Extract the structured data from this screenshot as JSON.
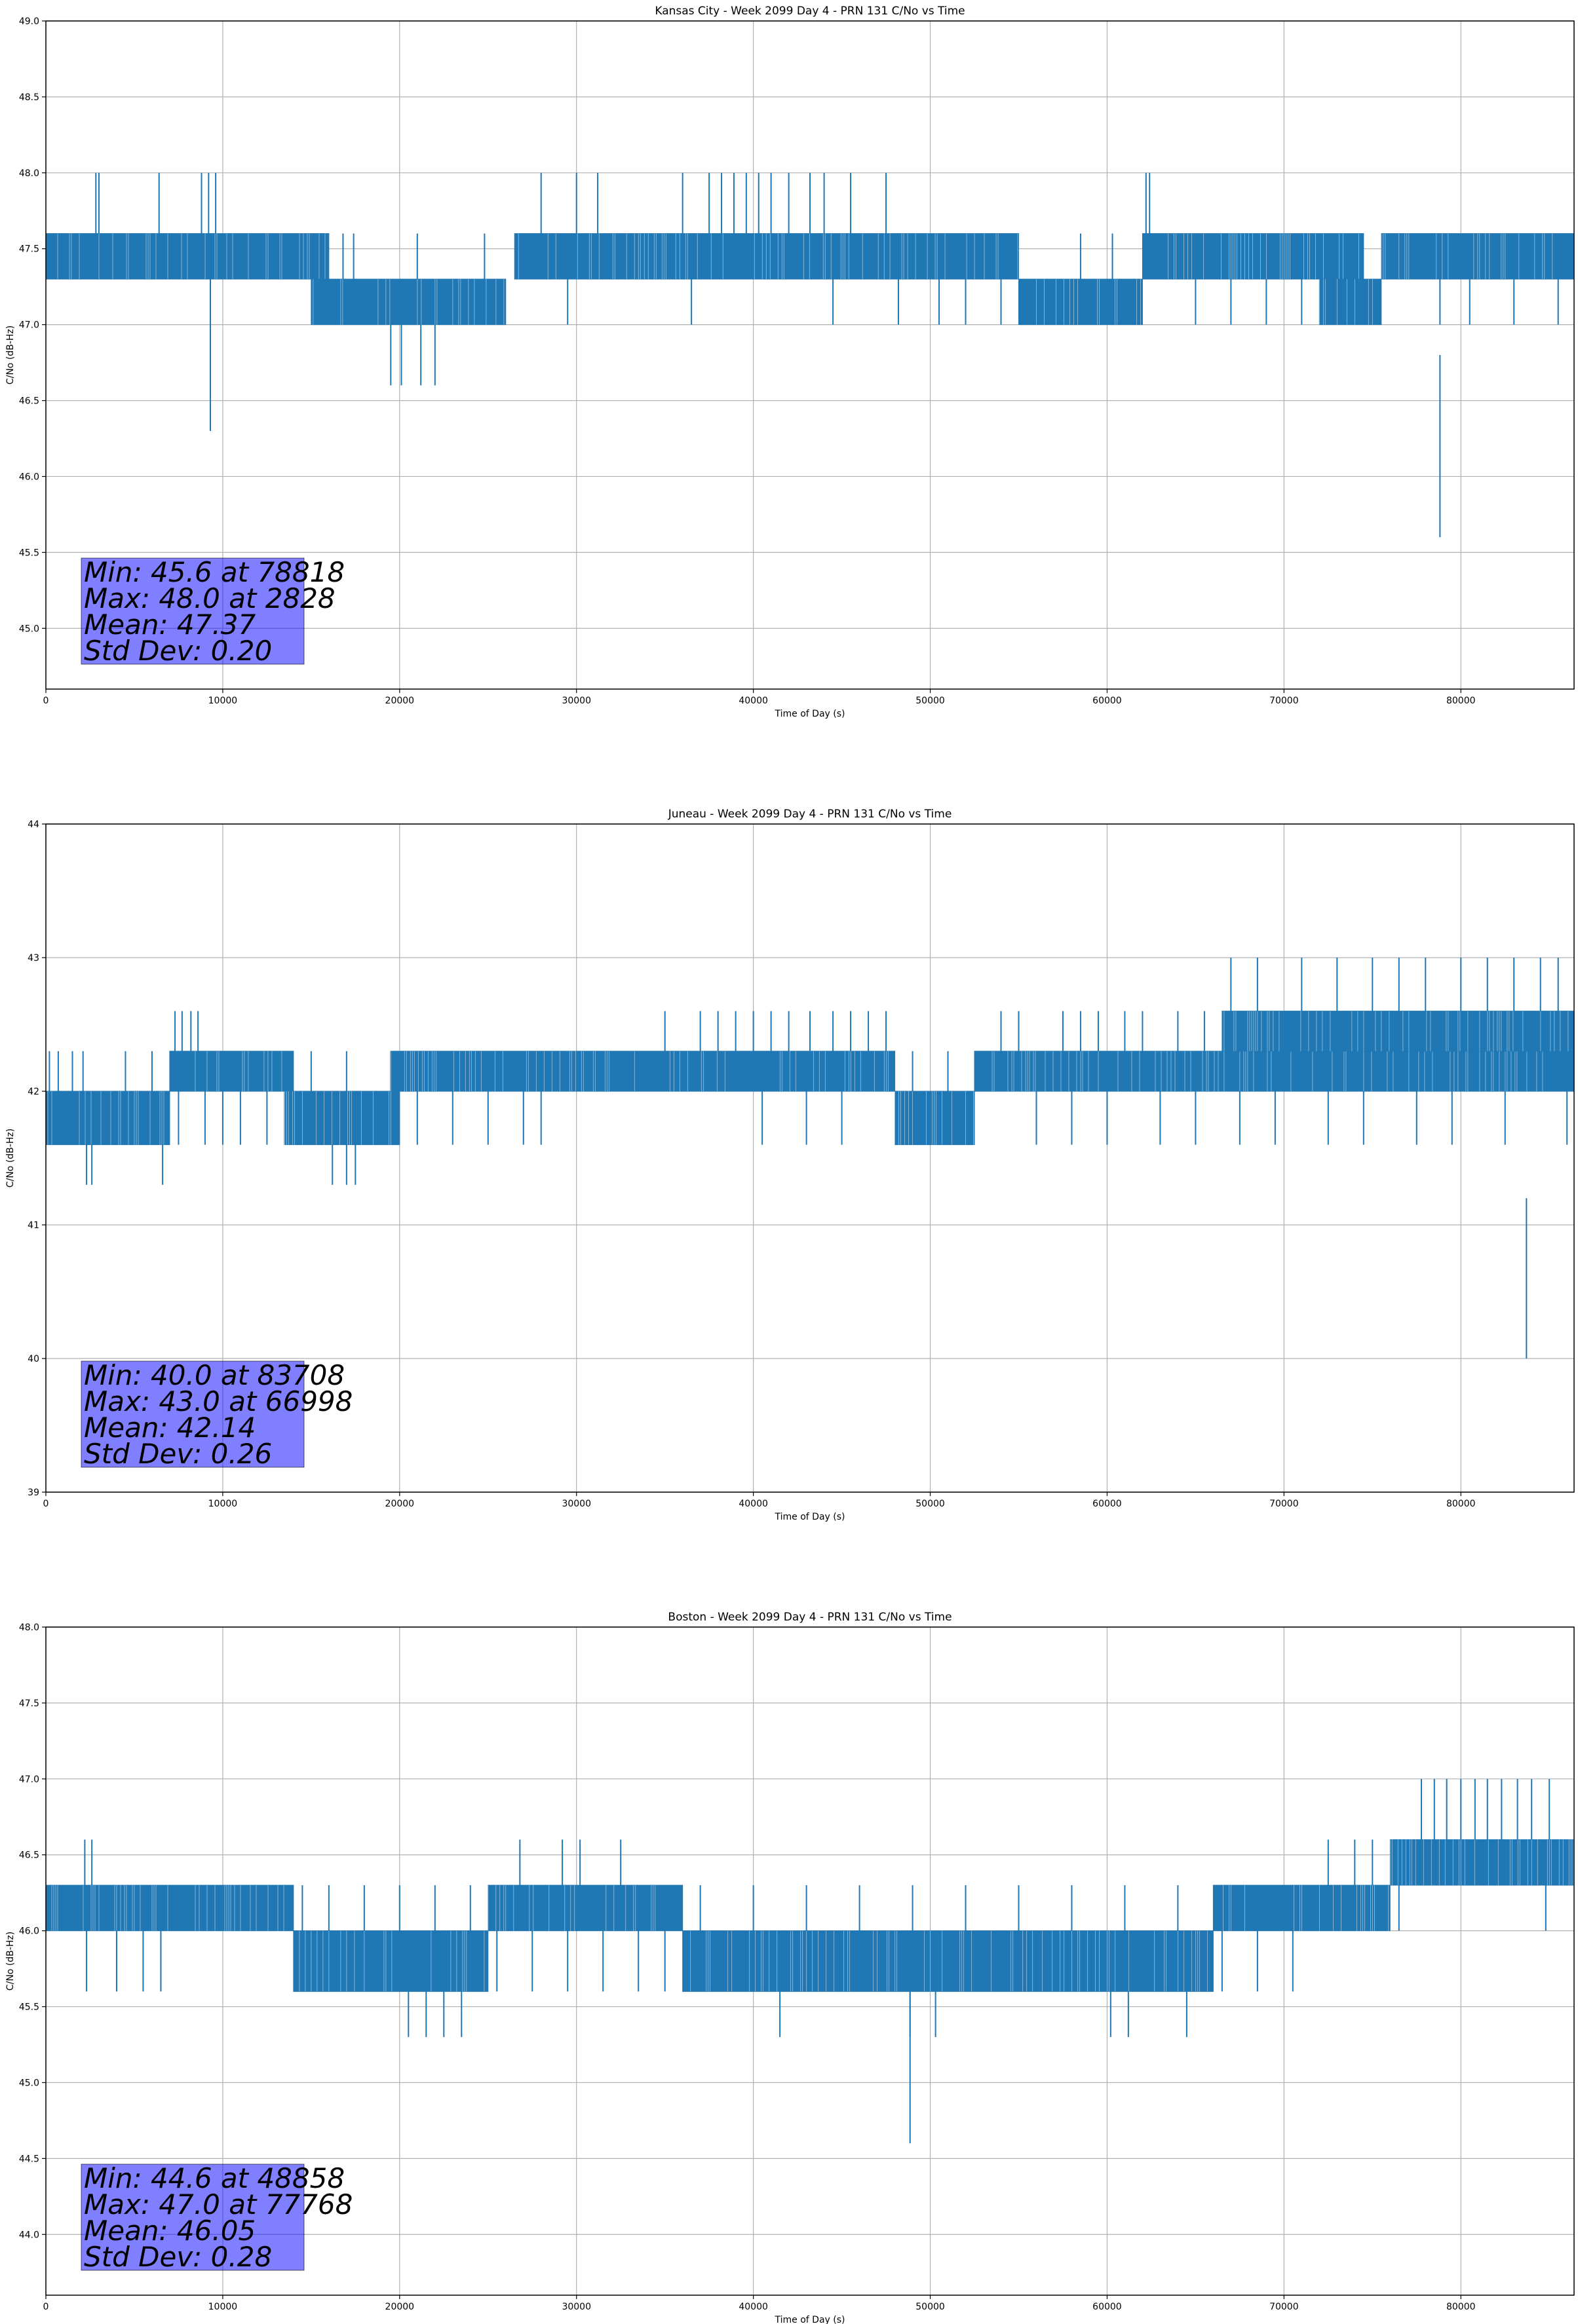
{
  "chart_data": [
    {
      "type": "line",
      "title": "Kansas City - Week 2099 Day 4 - PRN 131 C/No vs Time",
      "xlabel": "Time of Day (s)",
      "ylabel": "C/No (dB-Hz)",
      "xlim": [
        0,
        86400
      ],
      "ylim": [
        44.6,
        49.0
      ],
      "xticks": [
        0,
        10000,
        20000,
        30000,
        40000,
        50000,
        60000,
        70000,
        80000
      ],
      "yticks": [
        45.0,
        45.5,
        46.0,
        46.5,
        47.0,
        47.5,
        48.0,
        48.5,
        49.0
      ],
      "ytick_labels": [
        "45.0",
        "45.5",
        "46.0",
        "46.5",
        "47.0",
        "47.5",
        "48.0",
        "48.5",
        "49.0"
      ],
      "grid": true,
      "color": "#1f77b4",
      "stats": [
        "Min: 45.6 at 78818",
        "Max: 48.0 at 2828",
        "Mean: 47.37",
        "Std Dev: 0.20"
      ],
      "segments": [
        {
          "x": [
            0,
            16000
          ],
          "bands": [
            [
              47.3,
              47.6
            ]
          ],
          "spikes_up": [
            2828,
            3000,
            6400,
            8800,
            9200,
            9600
          ],
          "spike_up_to": 48.0,
          "spikes_down": [
            9300
          ],
          "spike_down_to": 46.3
        },
        {
          "x": [
            15000,
            26000
          ],
          "bands": [
            [
              47.0,
              47.3
            ]
          ],
          "spikes_up": [
            16800,
            17400,
            21000,
            24800
          ],
          "spike_up_to": 47.6,
          "spikes_down": [
            19500,
            20100,
            21200,
            22000
          ],
          "spike_down_to": 46.6
        },
        {
          "x": [
            26500,
            47500
          ],
          "bands": [
            [
              47.3,
              47.6
            ]
          ],
          "spikes_up": [
            28000,
            30000,
            31200,
            36000,
            37500,
            38200,
            38900,
            39600,
            40300,
            41000,
            42000,
            43200,
            44000,
            45500,
            47500
          ],
          "spike_up_to": 48.0,
          "spikes_down": [
            29500,
            36500,
            44500
          ],
          "spike_down_to": 47.0
        },
        {
          "x": [
            47500,
            55000
          ],
          "bands": [
            [
              47.3,
              47.6
            ]
          ],
          "spikes_up": [],
          "spike_up_to": 47.6,
          "spikes_down": [
            48200,
            50500,
            52000,
            54000
          ],
          "spike_down_to": 47.0
        },
        {
          "x": [
            55000,
            62000
          ],
          "bands": [
            [
              47.0,
              47.3
            ]
          ],
          "spikes_up": [
            58500,
            60300
          ],
          "spike_up_to": 47.6,
          "spikes_down": [],
          "spike_down_to": 47.0
        },
        {
          "x": [
            62000,
            74500
          ],
          "bands": [
            [
              47.3,
              47.6
            ]
          ],
          "spikes_up": [
            62200,
            62400
          ],
          "spike_up_to": 48.0,
          "spikes_down": [
            65000,
            67000,
            69000,
            71000
          ],
          "spike_down_to": 47.0
        },
        {
          "x": [
            72000,
            75500
          ],
          "bands": [
            [
              47.0,
              47.3
            ]
          ],
          "spikes_up": [],
          "spike_up_to": 47.6,
          "spikes_down": [],
          "spike_down_to": 47.0
        },
        {
          "x": [
            75500,
            86400
          ],
          "bands": [
            [
              47.3,
              47.6
            ]
          ],
          "spikes_up": [],
          "spike_up_to": 47.6,
          "spikes_down": [
            78818,
            80500,
            83000,
            85500
          ],
          "spike_down_to": 47.0
        }
      ],
      "min_point": [
        78818,
        45.6
      ]
    },
    {
      "type": "line",
      "title": "Juneau - Week 2099 Day 4 - PRN 131 C/No vs Time",
      "xlabel": "Time of Day (s)",
      "ylabel": "C/No (dB-Hz)",
      "xlim": [
        0,
        86400
      ],
      "ylim": [
        39,
        44
      ],
      "xticks": [
        0,
        10000,
        20000,
        30000,
        40000,
        50000,
        60000,
        70000,
        80000
      ],
      "yticks": [
        39,
        40,
        41,
        42,
        43,
        44
      ],
      "ytick_labels": [
        "39",
        "40",
        "41",
        "42",
        "43",
        "44"
      ],
      "grid": true,
      "color": "#1f77b4",
      "stats": [
        "Min: 40.0 at 83708",
        "Max: 43.0 at 66998",
        "Mean: 42.14",
        "Std Dev: 0.26"
      ],
      "segments": [
        {
          "x": [
            0,
            7000
          ],
          "bands": [
            [
              41.6,
              42.0
            ]
          ],
          "spikes_up": [
            200,
            700,
            1500,
            2100,
            4500,
            6000
          ],
          "spike_up_to": 42.3,
          "spikes_down": [
            2300,
            2600,
            6600
          ],
          "spike_down_to": 41.3
        },
        {
          "x": [
            7000,
            14000
          ],
          "bands": [
            [
              42.0,
              42.3
            ]
          ],
          "spikes_up": [
            7300,
            7700,
            8200,
            8600
          ],
          "spike_up_to": 42.6,
          "spikes_down": [
            7500,
            9000,
            10000,
            11000,
            12500,
            13500
          ],
          "spike_down_to": 41.6
        },
        {
          "x": [
            13500,
            20000
          ],
          "bands": [
            [
              41.6,
              42.0
            ]
          ],
          "spikes_up": [
            15000,
            17000,
            19500
          ],
          "spike_up_to": 42.3,
          "spikes_down": [
            16200,
            17000,
            17500
          ],
          "spike_down_to": 41.3
        },
        {
          "x": [
            19500,
            48000
          ],
          "bands": [
            [
              42.0,
              42.3
            ]
          ],
          "spikes_up": [
            35000,
            37000,
            38000,
            39000,
            40000,
            41000,
            42000,
            43200,
            44500,
            45500,
            46500,
            47500
          ],
          "spike_up_to": 42.6,
          "spikes_down": [
            21000,
            23000,
            25000,
            27000,
            28000,
            40500,
            43000,
            45000
          ],
          "spike_down_to": 41.6
        },
        {
          "x": [
            48000,
            52500
          ],
          "bands": [
            [
              41.6,
              42.0
            ]
          ],
          "spikes_up": [
            49000,
            51000
          ],
          "spike_up_to": 42.3,
          "spikes_down": [],
          "spike_down_to": 41.6
        },
        {
          "x": [
            52500,
            66500
          ],
          "bands": [
            [
              42.0,
              42.3
            ]
          ],
          "spikes_up": [
            54000,
            55000,
            57500,
            58500,
            59500,
            61000,
            62000,
            64000,
            65500
          ],
          "spike_up_to": 42.6,
          "spikes_down": [
            56000,
            58000,
            60000,
            63000,
            65000
          ],
          "spike_down_to": 41.6
        },
        {
          "x": [
            66500,
            86400
          ],
          "bands": [
            [
              42.0,
              42.3
            ],
            [
              42.3,
              42.6
            ]
          ],
          "spikes_up": [
            66998,
            68500,
            71000,
            73000,
            75000,
            76500,
            78000,
            80000,
            81500,
            83000,
            84500,
            85500
          ],
          "spike_up_to": 43.0,
          "spikes_down": [
            67500,
            69500,
            72500,
            74500,
            77500,
            79500,
            82500,
            86000
          ],
          "spike_down_to": 41.6
        }
      ],
      "min_point": [
        83708,
        40.0
      ]
    },
    {
      "type": "line",
      "title": "Boston - Week 2099 Day 4 - PRN 131 C/No vs Time",
      "xlabel": "Time of Day (s)",
      "ylabel": "C/No (dB-Hz)",
      "xlim": [
        0,
        86400
      ],
      "ylim": [
        43.6,
        48.0
      ],
      "xticks": [
        0,
        10000,
        20000,
        30000,
        40000,
        50000,
        60000,
        70000,
        80000
      ],
      "yticks": [
        44.0,
        44.5,
        45.0,
        45.5,
        46.0,
        46.5,
        47.0,
        47.5,
        48.0
      ],
      "ytick_labels": [
        "44.0",
        "44.5",
        "45.0",
        "45.5",
        "46.0",
        "46.5",
        "47.0",
        "47.5",
        "48.0"
      ],
      "grid": true,
      "color": "#1f77b4",
      "stats": [
        "Min: 44.6 at 48858",
        "Max: 47.0 at 77768",
        "Mean: 46.05",
        "Std Dev: 0.28"
      ],
      "segments": [
        {
          "x": [
            0,
            14000
          ],
          "bands": [
            [
              46.0,
              46.3
            ]
          ],
          "spikes_up": [
            2200,
            2600
          ],
          "spike_up_to": 46.6,
          "spikes_down": [
            2300,
            4000,
            5500,
            6500
          ],
          "spike_down_to": 45.6
        },
        {
          "x": [
            14000,
            25000
          ],
          "bands": [
            [
              45.6,
              46.0
            ]
          ],
          "spikes_up": [
            14500,
            16000,
            18000,
            20000,
            22000,
            24000
          ],
          "spike_up_to": 46.3,
          "spikes_down": [
            20500,
            21500,
            22500,
            23500
          ],
          "spike_down_to": 45.3
        },
        {
          "x": [
            25000,
            36000
          ],
          "bands": [
            [
              46.0,
              46.3
            ]
          ],
          "spikes_up": [
            26800,
            29200,
            30200,
            32500
          ],
          "spike_up_to": 46.6,
          "spikes_down": [
            25500,
            27500,
            29500,
            31500,
            33500,
            35000
          ],
          "spike_down_to": 45.6
        },
        {
          "x": [
            36000,
            66000
          ],
          "bands": [
            [
              45.6,
              46.0
            ]
          ],
          "spikes_up": [
            37000,
            40000,
            43000,
            46000,
            49000,
            52000,
            55000,
            58000,
            61000,
            64000
          ],
          "spike_up_to": 46.3,
          "spikes_down": [
            41500,
            48858,
            50300,
            60200,
            61200,
            64500
          ],
          "spike_down_to": 45.3
        },
        {
          "x": [
            66000,
            76000
          ],
          "bands": [
            [
              46.0,
              46.3
            ]
          ],
          "spikes_up": [
            72500,
            74000,
            75000
          ],
          "spike_up_to": 46.6,
          "spikes_down": [
            66500,
            68500,
            70500
          ],
          "spike_down_to": 45.6
        },
        {
          "x": [
            76000,
            86400
          ],
          "bands": [
            [
              46.3,
              46.6
            ]
          ],
          "spikes_up": [
            77768,
            78500,
            79200,
            80000,
            80800,
            81500,
            82300,
            83200,
            84000,
            85000
          ],
          "spike_up_to": 47.0,
          "spikes_down": [
            76500,
            84800
          ],
          "spike_down_to": 46.0
        }
      ],
      "min_point": [
        48858,
        44.6
      ]
    }
  ]
}
